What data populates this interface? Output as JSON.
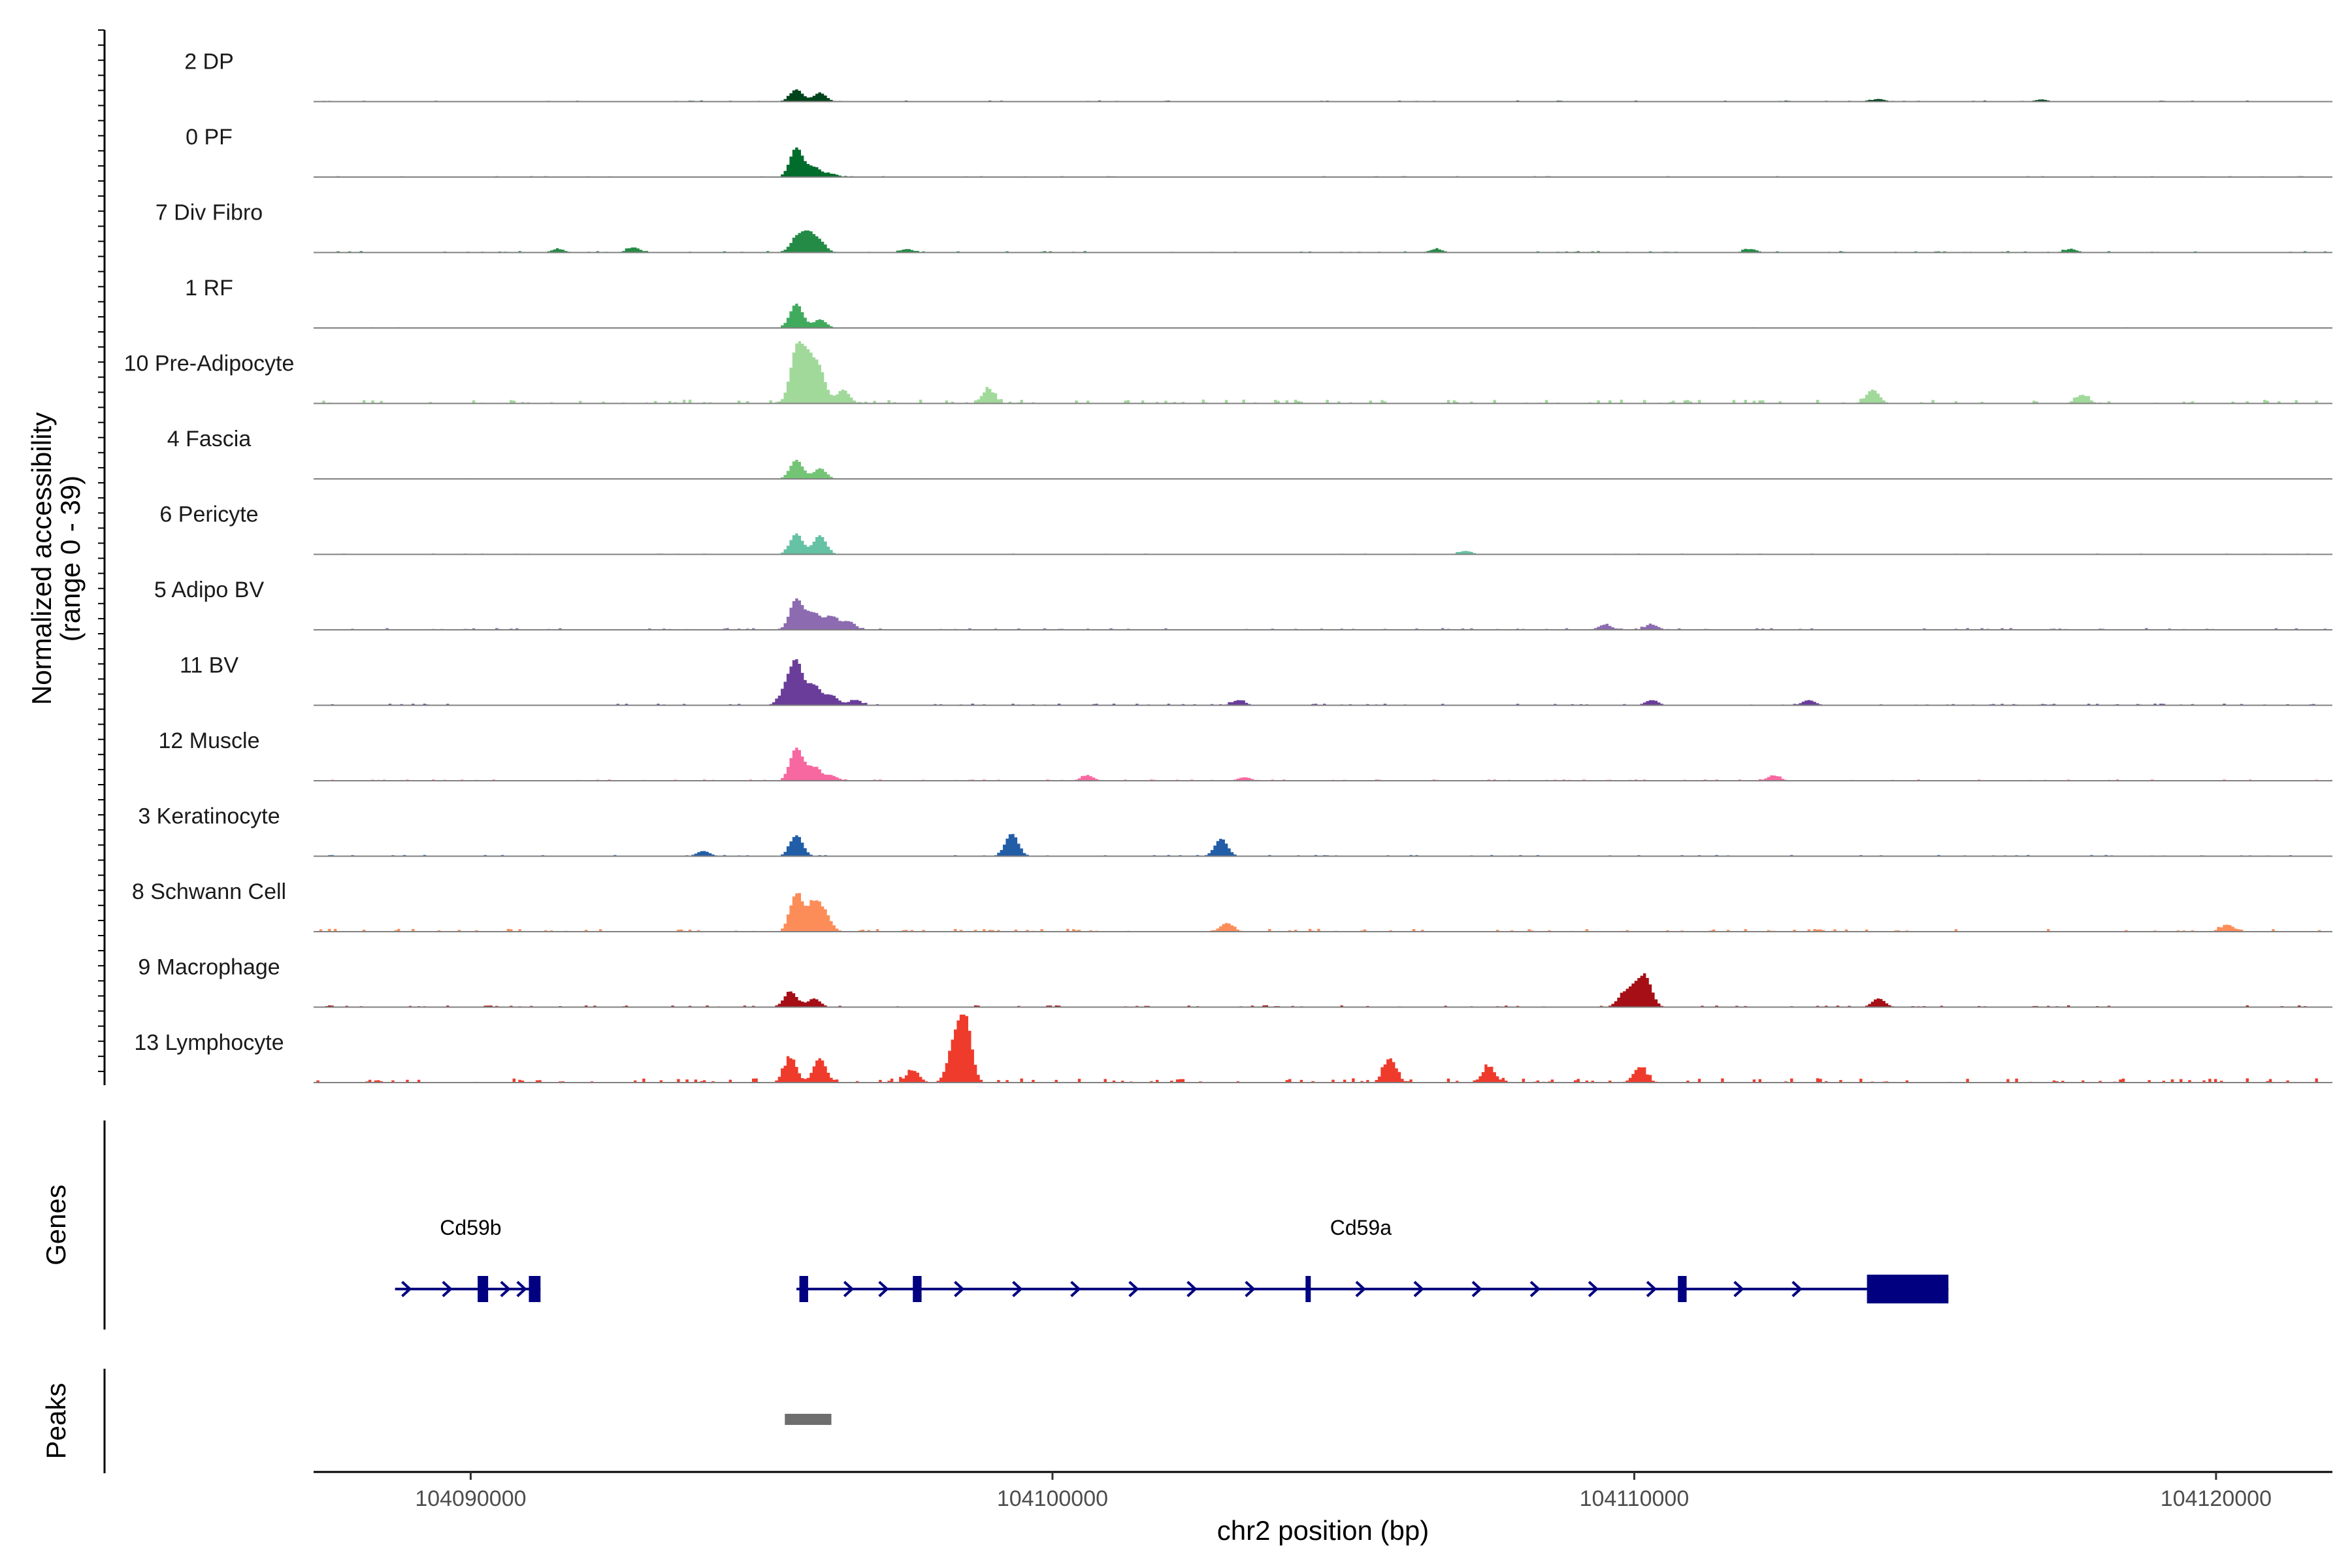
{
  "chart_data": {
    "type": "area",
    "title": "",
    "region": "chr2",
    "xlabel": "chr2 position (bp)",
    "ylabel_line1": "Normalized accessibility",
    "ylabel_line2": "(range 0 - 39)",
    "xlim": [
      104087300,
      104122000
    ],
    "x_ticks": [
      104090000,
      104100000,
      104110000,
      104120000
    ],
    "x_tick_labels": [
      "104090000",
      "104100000",
      "104110000",
      "104120000"
    ],
    "y_range": [
      0,
      39
    ],
    "panel_labels": {
      "genes": "Genes",
      "peaks": "Peaks"
    },
    "tracks": [
      {
        "name": "2 DP",
        "color": "#00441b",
        "bins": [
          [
            104095600,
            7
          ],
          [
            104096000,
            5
          ],
          [
            104114200,
            1.5
          ],
          [
            104117000,
            1.2
          ]
        ],
        "noise": 0.6,
        "seed": 11
      },
      {
        "name": "0 PF",
        "color": "#006d2c",
        "bins": [
          [
            104095600,
            17
          ],
          [
            104095900,
            6
          ],
          [
            104096200,
            2
          ]
        ],
        "noise": 0.5,
        "seed": 23
      },
      {
        "name": "7 Div Fibro",
        "color": "#238b45",
        "bins": [
          [
            104095600,
            8
          ],
          [
            104095800,
            10
          ],
          [
            104096000,
            6
          ],
          [
            104091500,
            2
          ],
          [
            104092800,
            3
          ],
          [
            104097500,
            2
          ],
          [
            104106600,
            2
          ],
          [
            104112000,
            2
          ],
          [
            104117500,
            2
          ]
        ],
        "noise": 0.8,
        "seed": 5
      },
      {
        "name": "1 RF",
        "color": "#41ab5d",
        "bins": [
          [
            104095600,
            14
          ],
          [
            104096000,
            5
          ]
        ],
        "noise": 0.4,
        "seed": 37
      },
      {
        "name": "10 Pre-Adipocyte",
        "color": "#a1d99b",
        "bins": [
          [
            104095600,
            30
          ],
          [
            104095800,
            22
          ],
          [
            104096000,
            18
          ],
          [
            104096400,
            8
          ],
          [
            104098900,
            8
          ],
          [
            104114100,
            8
          ],
          [
            104117700,
            5
          ]
        ],
        "noise": 2.2,
        "seed": 41
      },
      {
        "name": "4 Fascia",
        "color": "#74c476",
        "bins": [
          [
            104095600,
            11
          ],
          [
            104096000,
            6
          ]
        ],
        "noise": 0.4,
        "seed": 53
      },
      {
        "name": "6 Pericyte",
        "color": "#66c2a4",
        "bins": [
          [
            104095600,
            12
          ],
          [
            104096000,
            11
          ],
          [
            104107100,
            2
          ]
        ],
        "noise": 0.5,
        "seed": 61
      },
      {
        "name": "5 Adipo BV",
        "color": "#8c6bb1",
        "bins": [
          [
            104095600,
            18
          ],
          [
            104095900,
            10
          ],
          [
            104096200,
            8
          ],
          [
            104096500,
            5
          ],
          [
            104109500,
            3
          ],
          [
            104110300,
            3
          ]
        ],
        "noise": 1.0,
        "seed": 71
      },
      {
        "name": "11 BV",
        "color": "#6a3d9a",
        "bins": [
          [
            104095400,
            8
          ],
          [
            104095600,
            25
          ],
          [
            104095900,
            12
          ],
          [
            104096200,
            6
          ],
          [
            104096600,
            3
          ],
          [
            104103200,
            3
          ],
          [
            104110300,
            3
          ],
          [
            104113000,
            3
          ]
        ],
        "noise": 0.9,
        "seed": 83
      },
      {
        "name": "12 Muscle",
        "color": "#f768a1",
        "bins": [
          [
            104095600,
            19
          ],
          [
            104095900,
            8
          ],
          [
            104096200,
            3
          ],
          [
            104100600,
            3
          ],
          [
            104103300,
            2
          ],
          [
            104112400,
            3
          ]
        ],
        "noise": 0.7,
        "seed": 97
      },
      {
        "name": "3 Keratinocyte",
        "color": "#225ea8",
        "bins": [
          [
            104095600,
            12
          ],
          [
            104099300,
            13
          ],
          [
            104102900,
            10
          ],
          [
            104094000,
            3
          ]
        ],
        "noise": 0.7,
        "seed": 101
      },
      {
        "name": "8 Schwann Cell",
        "color": "#fc8d59",
        "bins": [
          [
            104095600,
            22
          ],
          [
            104095900,
            16
          ],
          [
            104096100,
            9
          ],
          [
            104103000,
            5
          ],
          [
            104120200,
            4
          ]
        ],
        "noise": 1.6,
        "seed": 113
      },
      {
        "name": "9 Macrophage",
        "color": "#a50f15",
        "bins": [
          [
            104095500,
            9
          ],
          [
            104095900,
            5
          ],
          [
            104110200,
            16
          ],
          [
            104110000,
            10
          ],
          [
            104109800,
            6
          ],
          [
            104114200,
            5
          ]
        ],
        "noise": 1.0,
        "seed": 127
      },
      {
        "name": "13 Lymphocyte",
        "color": "#ef3b2c",
        "bins": [
          [
            104098500,
            37
          ],
          [
            104098300,
            20
          ],
          [
            104095500,
            14
          ],
          [
            104096000,
            14
          ],
          [
            104105800,
            14
          ],
          [
            104097600,
            7
          ],
          [
            104110100,
            9
          ],
          [
            104107500,
            9
          ]
        ],
        "noise": 2.5,
        "seed": 131
      }
    ],
    "genes": [
      {
        "name": "Cd59b",
        "color": "#000080",
        "start": 104088700,
        "end": 104091200,
        "exons": [
          [
            104090120,
            104090300
          ],
          [
            104091000,
            104091200
          ]
        ],
        "arrows": [
          104088900,
          104089600,
          104090600,
          104090880
        ]
      },
      {
        "name": "Cd59a",
        "color": "#000080",
        "start": 104095600,
        "end": 104115400,
        "exons": [
          [
            104095650,
            104095800
          ],
          [
            104097600,
            104097750
          ],
          [
            104104350,
            104104420
          ],
          [
            104110750,
            104110900
          ],
          [
            104114000,
            104115400
          ]
        ],
        "arrows": [
          104096500,
          104097100,
          104098400,
          104099400,
          104100400,
          104101400,
          104102400,
          104103400,
          104105300,
          104106300,
          104107300,
          104108300,
          104109300,
          104110300,
          104111800,
          104112800
        ]
      }
    ],
    "peaks": [
      {
        "start": 104095400,
        "end": 104096200
      }
    ]
  }
}
